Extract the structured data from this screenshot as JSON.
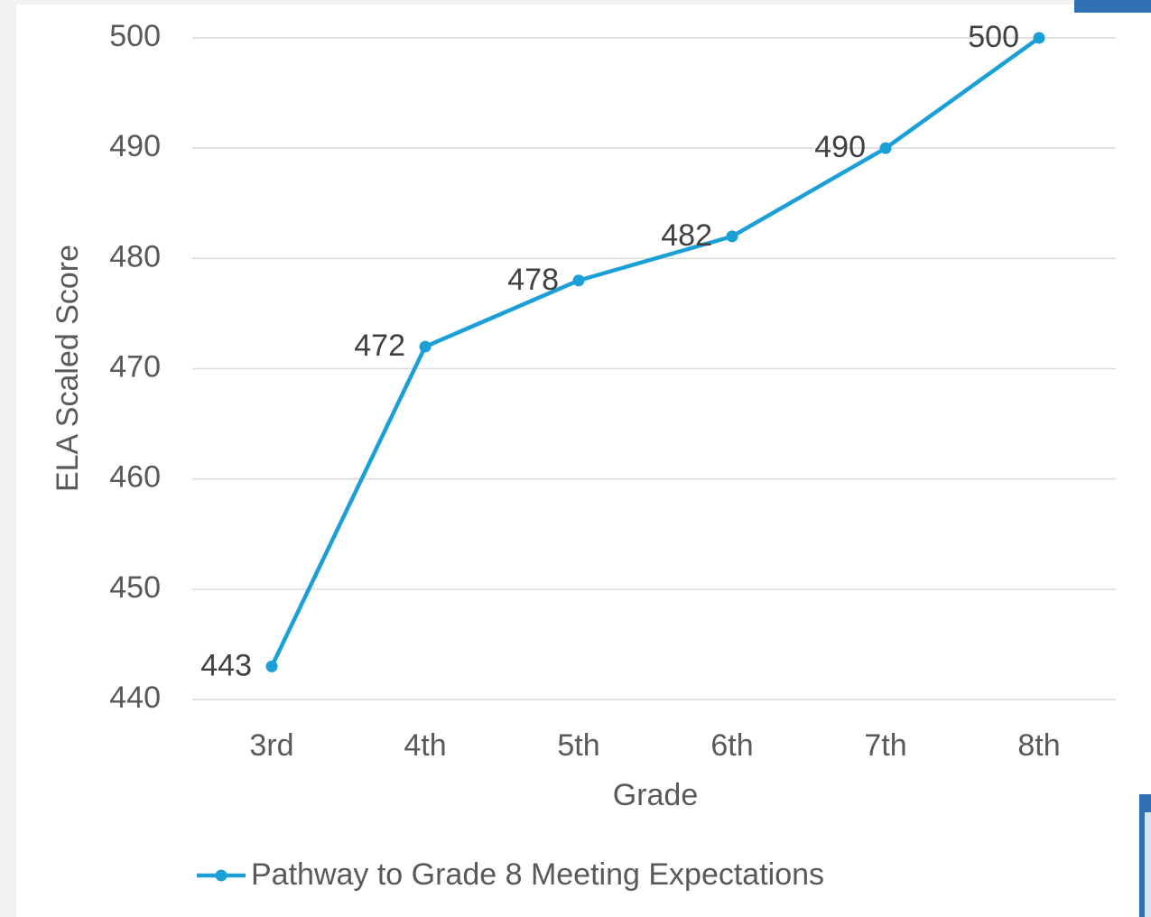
{
  "chart_data": {
    "type": "line",
    "categories": [
      "3rd",
      "4th",
      "5th",
      "6th",
      "7th",
      "8th"
    ],
    "series": [
      {
        "name": "Pathway to Grade 8 Meeting Expectations",
        "color": "#1a9fd6",
        "values": [
          443,
          472,
          478,
          482,
          490,
          500
        ]
      }
    ],
    "ylim": [
      440,
      500
    ],
    "yticks": [
      440,
      450,
      460,
      470,
      480,
      490,
      500
    ],
    "grid": true,
    "x_label": "Grade",
    "y_label": "ELA Scaled Score",
    "legend": "bottom",
    "data_labels": true
  }
}
